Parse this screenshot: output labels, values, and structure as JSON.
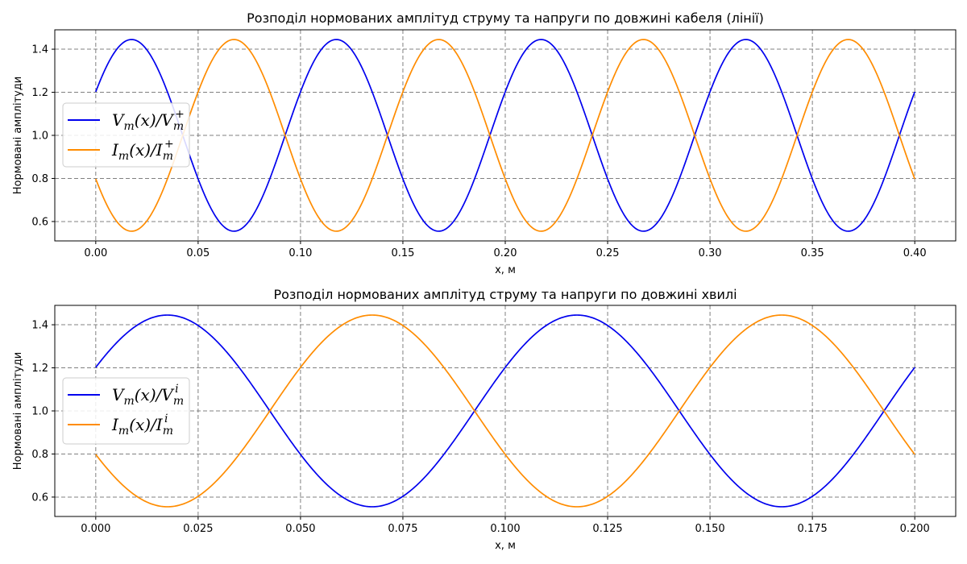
{
  "colors": {
    "voltage": "#0000ee",
    "current": "#ff8c00"
  },
  "chart_data": [
    {
      "type": "line",
      "title": "Розподіл нормованих амплітуд струму та напруги по довжині кабеля (лінії)",
      "xlabel": "x, м",
      "ylabel": "Нормовані амплітуди",
      "xlim": [
        -0.02,
        0.42
      ],
      "ylim": [
        0.51,
        1.49
      ],
      "xticks": [
        0.0,
        0.05,
        0.1,
        0.15,
        0.2,
        0.25,
        0.3,
        0.35,
        0.4
      ],
      "xtick_labels": [
        "0.00",
        "0.05",
        "0.10",
        "0.15",
        "0.20",
        "0.25",
        "0.30",
        "0.35",
        "0.40"
      ],
      "yticks": [
        0.6,
        0.8,
        1.0,
        1.2,
        1.4
      ],
      "ytick_labels": [
        "0.6",
        "0.8",
        "1.0",
        "1.2",
        "1.4"
      ],
      "grid": true,
      "legend_position": "center-left",
      "x_range": [
        0.0,
        0.4
      ],
      "period": 0.1,
      "series": [
        {
          "name": "V_m(x)/V_m^+",
          "legend": {
            "base": "V",
            "sub1": "m",
            "mid": "(x)/V",
            "sub2": "m",
            "sup2": "+"
          },
          "color": "#0000ee",
          "mean": 1.0,
          "amplitude": 0.445,
          "peak_x": 0.0175
        },
        {
          "name": "I_m(x)/I_m^+",
          "legend": {
            "base": "I",
            "sub1": "m",
            "mid": "(x)/I",
            "sub2": "m",
            "sup2": "+"
          },
          "color": "#ff8c00",
          "mean": 1.0,
          "amplitude": -0.445,
          "peak_x": 0.0175
        }
      ]
    },
    {
      "type": "line",
      "title": "Розподіл нормованих амплітуд струму та напруги по довжині хвилі",
      "xlabel": "x, м",
      "ylabel": "Нормовані амплітуди",
      "xlim": [
        -0.01,
        0.21
      ],
      "ylim": [
        0.51,
        1.49
      ],
      "xticks": [
        0.0,
        0.025,
        0.05,
        0.075,
        0.1,
        0.125,
        0.15,
        0.175,
        0.2
      ],
      "xtick_labels": [
        "0.000",
        "0.025",
        "0.050",
        "0.075",
        "0.100",
        "0.125",
        "0.150",
        "0.175",
        "0.200"
      ],
      "yticks": [
        0.6,
        0.8,
        1.0,
        1.2,
        1.4
      ],
      "ytick_labels": [
        "0.6",
        "0.8",
        "1.0",
        "1.2",
        "1.4"
      ],
      "grid": true,
      "legend_position": "center-left",
      "x_range": [
        0.0,
        0.2
      ],
      "period": 0.1,
      "series": [
        {
          "name": "V_m(x)/V_m^i",
          "legend": {
            "base": "V",
            "sub1": "m",
            "mid": "(x)/V",
            "sub2": "m",
            "sup2": "i"
          },
          "color": "#0000ee",
          "mean": 1.0,
          "amplitude": 0.445,
          "peak_x": 0.0175
        },
        {
          "name": "I_m(x)/I_m^i",
          "legend": {
            "base": "I",
            "sub1": "m",
            "mid": "(x)/I",
            "sub2": "m",
            "sup2": "i"
          },
          "color": "#ff8c00",
          "mean": 1.0,
          "amplitude": -0.445,
          "peak_x": 0.0175
        }
      ]
    }
  ]
}
